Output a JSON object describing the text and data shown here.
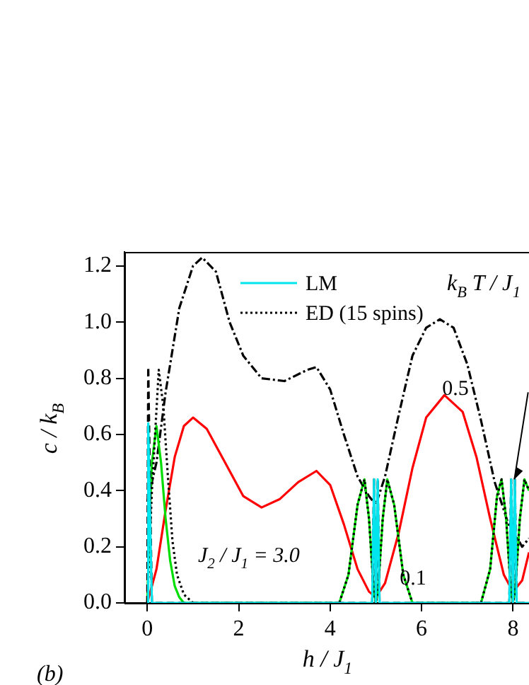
{
  "chart_data": {
    "type": "line",
    "xlabel": "h / J$_{1}$",
    "ylabel": "c / k$_{B}$",
    "legend": "top",
    "grid": false,
    "xlim": [
      -0.5,
      8.35
    ],
    "ylim": [
      0,
      1.25
    ],
    "xticks": [
      0,
      2,
      4,
      6,
      8
    ],
    "yticks": [
      {
        "value": 0,
        "label": "0.0"
      },
      0.2,
      0.4,
      0.6,
      0.8,
      {
        "value": 1,
        "label": "1.0"
      },
      1.2
    ],
    "annotations": [
      "k$_{B}$ T / J$_{1}$",
      "J$_{2}$ / J$_{1}$ = 3.0",
      "(b)",
      "0.5",
      "0.1"
    ],
    "series": [
      {
        "name": "LM",
        "color": "#00e5ee",
        "line_style": "solid",
        "x": [
          0,
          0.02,
          0.06,
          0.1,
          4.92,
          4.96,
          5,
          5.04,
          5.08,
          7.92,
          7.96,
          8,
          8.04,
          8.08,
          8.35
        ],
        "values": [
          0,
          0.64,
          0.3,
          0,
          0,
          0.44,
          0,
          0.44,
          0,
          0,
          0.44,
          0,
          0.44,
          0,
          0
        ]
      },
      {
        "name": "ED (15 spins)",
        "color": "#000000",
        "line_style": "dotted",
        "x": [
          0,
          0.1,
          0.25,
          0.35,
          0.45,
          0.55,
          0.65,
          0.8,
          1,
          4.2,
          4.4,
          4.6,
          4.75,
          4.85,
          4.95,
          5,
          5.05,
          5.15,
          5.25,
          5.4,
          5.6,
          5.8,
          7.3,
          7.5,
          7.65,
          7.75,
          7.85,
          7.95,
          8,
          8.05,
          8.15,
          8.25,
          8.35
        ],
        "values": [
          0,
          0.4,
          0.83,
          0.7,
          0.45,
          0.22,
          0.1,
          0.03,
          0,
          0,
          0.1,
          0.35,
          0.44,
          0.3,
          0.05,
          0,
          0.05,
          0.3,
          0.44,
          0.35,
          0.1,
          0,
          0,
          0.12,
          0.38,
          0.44,
          0.3,
          0.05,
          0,
          0.05,
          0.3,
          0.44,
          0.4
        ]
      },
      {
        "color": "#000000",
        "line_style": "dashed",
        "x": [
          0,
          0.02,
          0.06,
          0.1,
          4.92,
          4.96,
          5,
          5.04,
          5.08,
          7.92,
          7.96,
          8,
          8.04,
          8.08,
          8.35
        ],
        "values": [
          0,
          0.84,
          0.4,
          0,
          0,
          0.44,
          0,
          0.44,
          0,
          0,
          0.44,
          0,
          0.44,
          0,
          0
        ]
      },
      {
        "color": "#00dd00",
        "line_style": "solid",
        "x": [
          0,
          0.05,
          0.1,
          0.2,
          0.3,
          0.4,
          0.5,
          0.6,
          0.7,
          0.8,
          4.2,
          4.4,
          4.6,
          4.75,
          4.85,
          4.95,
          5,
          5.05,
          5.15,
          5.25,
          5.4,
          5.6,
          5.8,
          7.3,
          7.5,
          7.65,
          7.75,
          7.85,
          7.95,
          8,
          8.05,
          8.15,
          8.25,
          8.35
        ],
        "values": [
          0,
          0.3,
          0.5,
          0.63,
          0.5,
          0.3,
          0.15,
          0.06,
          0.02,
          0,
          0,
          0.1,
          0.35,
          0.44,
          0.3,
          0.05,
          0,
          0.05,
          0.3,
          0.44,
          0.35,
          0.1,
          0,
          0,
          0.12,
          0.38,
          0.44,
          0.3,
          0.05,
          0,
          0.05,
          0.3,
          0.44,
          0.4
        ]
      },
      {
        "color": "#ff0000",
        "line_style": "solid",
        "x": [
          0,
          0.2,
          0.4,
          0.6,
          0.8,
          1,
          1.3,
          1.7,
          2.1,
          2.5,
          2.9,
          3.3,
          3.7,
          4,
          4.3,
          4.6,
          4.85,
          5,
          5.2,
          5.5,
          5.8,
          6.1,
          6.5,
          6.9,
          7.2,
          7.5,
          7.8,
          8,
          8.2,
          8.35
        ],
        "values": [
          0,
          0.12,
          0.33,
          0.52,
          0.63,
          0.66,
          0.62,
          0.5,
          0.38,
          0.34,
          0.37,
          0.43,
          0.47,
          0.42,
          0.28,
          0.12,
          0.04,
          0.02,
          0.07,
          0.25,
          0.48,
          0.66,
          0.74,
          0.68,
          0.52,
          0.3,
          0.1,
          0.04,
          0.08,
          0.18
        ]
      },
      {
        "color": "#000000",
        "line_style": "dashdot",
        "x": [
          0,
          0.2,
          0.4,
          0.7,
          1,
          1.2,
          1.5,
          1.8,
          2.1,
          2.5,
          3,
          3.5,
          3.7,
          4,
          4.3,
          4.6,
          4.85,
          5,
          5.2,
          5.5,
          5.8,
          6.1,
          6.4,
          6.7,
          7,
          7.3,
          7.6,
          7.9,
          8,
          8.2,
          8.35
        ],
        "values": [
          0.36,
          0.5,
          0.75,
          1.05,
          1.2,
          1.23,
          1.18,
          1.0,
          0.88,
          0.8,
          0.79,
          0.83,
          0.84,
          0.76,
          0.6,
          0.45,
          0.38,
          0.35,
          0.45,
          0.67,
          0.88,
          0.98,
          1.01,
          0.98,
          0.85,
          0.65,
          0.43,
          0.28,
          0.26,
          0.2,
          0.23
        ]
      }
    ]
  }
}
